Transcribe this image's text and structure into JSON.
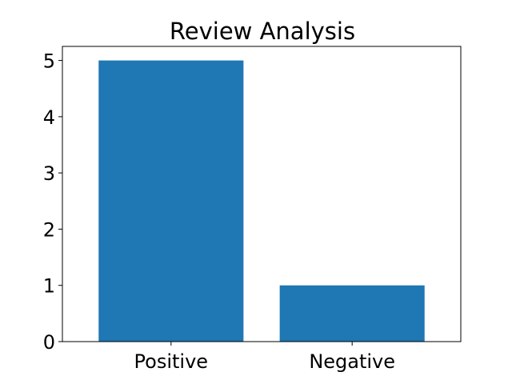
{
  "chart_data": {
    "type": "bar",
    "title": "Review Analysis",
    "xlabel": "",
    "ylabel": "",
    "categories": [
      "Positive",
      "Negative"
    ],
    "values": [
      5,
      1
    ],
    "ylim": [
      0,
      5.25
    ],
    "yticks": [
      0,
      1,
      2,
      3,
      4,
      5
    ],
    "grid": false,
    "legend": "none",
    "bar_color": "#1f77b4"
  }
}
